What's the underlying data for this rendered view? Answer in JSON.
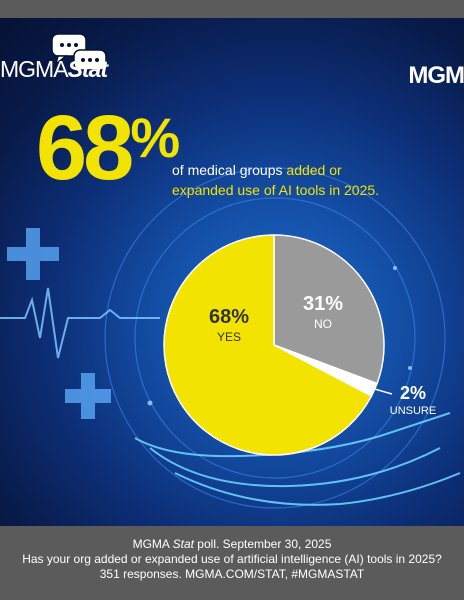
{
  "brand": {
    "left": "MGMA",
    "right": "Stat"
  },
  "logo": "MGM",
  "headline": {
    "big_number": "68",
    "big_percent": "%",
    "text_plain": "of medical groups ",
    "text_highlight_1": "added or",
    "text_highlight_2": "expanded use of AI tools in 2025."
  },
  "chart_data": {
    "type": "pie",
    "slices": [
      {
        "label": "YES",
        "value": 68,
        "value_text": "68%",
        "color": "#f3e300"
      },
      {
        "label": "NO",
        "value": 31,
        "value_text": "31%",
        "color": "#9a9a9a"
      },
      {
        "label": "UNSURE",
        "value": 2,
        "value_text": "2%",
        "color": "#ffffff"
      }
    ]
  },
  "footer": {
    "line1_a": "MGMA ",
    "line1_b": "Stat",
    "line1_c": " poll. September 30, 2025",
    "line2": "Has your org added or expanded  use of artificial intelligence (AI) tools in 2025?",
    "line3": "351 responses. MGMA.COM/STAT, #MGMASTAT"
  },
  "colors": {
    "accent": "#f3e300",
    "background": "#0d2f78",
    "footer": "#5b5b5b"
  }
}
